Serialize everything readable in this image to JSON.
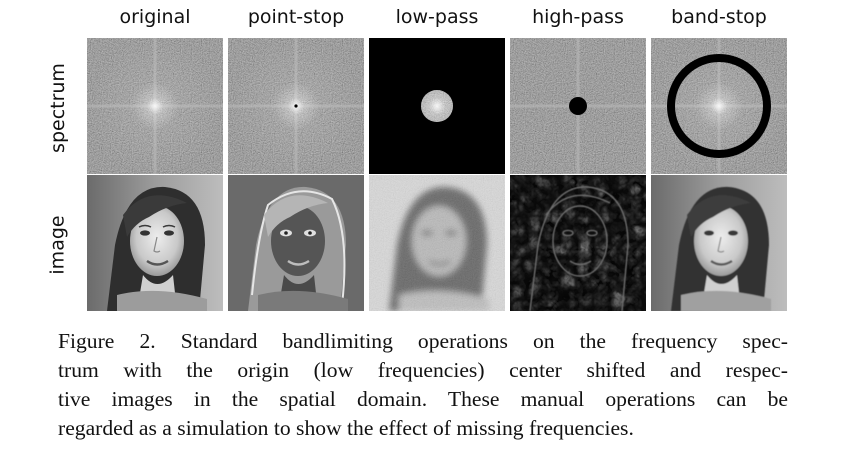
{
  "columns": [
    "original",
    "point-stop",
    "low-pass",
    "high-pass",
    "band-stop"
  ],
  "rows": [
    "spectrum",
    "image"
  ],
  "caption": {
    "lines": [
      "Figure 2. Standard bandlimiting operations on the frequency spec-",
      "trum with the origin (low frequencies) center shifted and respec-",
      "tive images in the spatial domain. These manual operations can be",
      "regarded as a simulation to show the effect of missing frequencies."
    ]
  },
  "colors": {
    "spectrum_gray": "#808080",
    "mask_black": "#000000",
    "passband_gray": "#9a9a9a"
  }
}
